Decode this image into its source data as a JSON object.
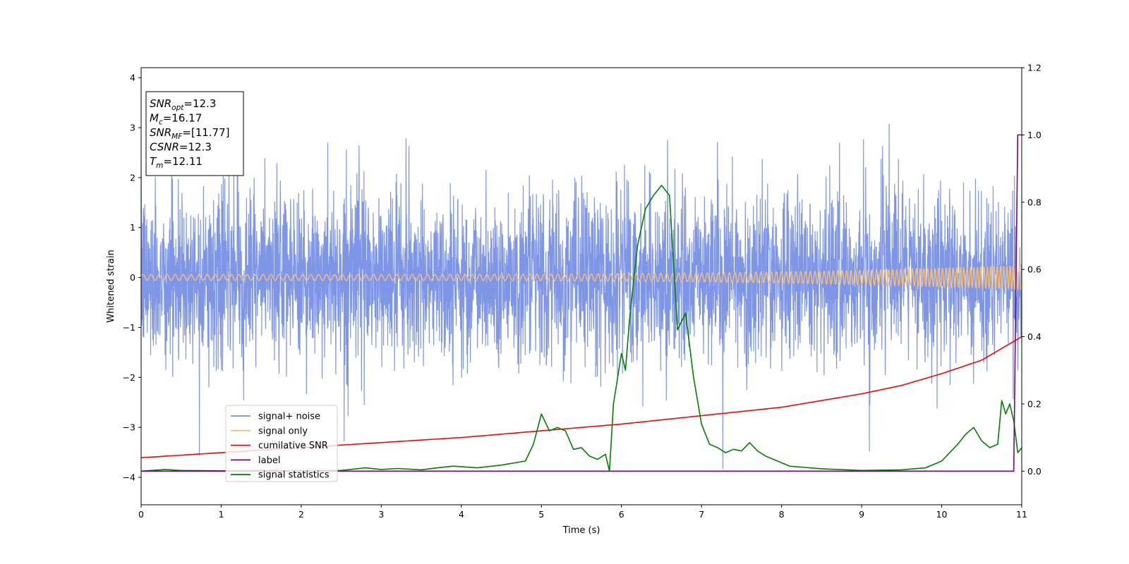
{
  "chart_data": {
    "type": "line",
    "xlabel": "Time (s)",
    "ylabel": "Whitened strain",
    "xlim": [
      0,
      11
    ],
    "ylim_left": [
      -4.55,
      4.2
    ],
    "ylim_right": [
      -0.1,
      1.2
    ],
    "x_ticks": [
      "0",
      "1",
      "2",
      "3",
      "4",
      "5",
      "6",
      "7",
      "8",
      "9",
      "10",
      "11"
    ],
    "y_ticks_left": [
      "−4",
      "−3",
      "−2",
      "−1",
      "0",
      "1",
      "2",
      "3",
      "4"
    ],
    "y_ticks_right": [
      "0.0",
      "0.2",
      "0.4",
      "0.6",
      "0.8",
      "1.0",
      "1.2"
    ],
    "legend_position": "lower-left",
    "info_box": [
      {
        "name": "SNR",
        "sub": "opt",
        "value": "=12.3"
      },
      {
        "name": "M",
        "sub": "c",
        "value": "=16.17"
      },
      {
        "name": "SNR",
        "sub": "MF",
        "value": "=[11.77]"
      },
      {
        "name": "CSNR",
        "sub": "",
        "value": "=12.3"
      },
      {
        "name": "T",
        "sub": "m",
        "value": "=12.11"
      }
    ],
    "series": [
      {
        "name": "signal+ noise",
        "axis": "left",
        "color": "#7890e6",
        "kind": "noise",
        "sigma": 0.85,
        "x_range": [
          0,
          11
        ]
      },
      {
        "name": "signal only",
        "axis": "left",
        "color": "#f5c07a",
        "kind": "chirp",
        "amplitude_start": 0.06,
        "amplitude_end": 0.25,
        "x_range": [
          0,
          11
        ]
      },
      {
        "name": "cumilative SNR",
        "axis": "right",
        "color": "#ff0000",
        "x": [
          0,
          1,
          2,
          3,
          4,
          5,
          6,
          7,
          8,
          9,
          9.5,
          10,
          10.5,
          11
        ],
        "y": [
          0.04,
          0.055,
          0.07,
          0.085,
          0.1,
          0.12,
          0.14,
          0.165,
          0.19,
          0.23,
          0.255,
          0.29,
          0.33,
          0.4
        ]
      },
      {
        "name": "label",
        "axis": "right",
        "color": "#800080",
        "x": [
          0,
          10.9,
          10.95,
          11
        ],
        "y": [
          0,
          0,
          1.0,
          1.0
        ]
      },
      {
        "name": "signal statistics",
        "axis": "right",
        "color": "#008000",
        "x": [
          0,
          0.3,
          0.5,
          1,
          1.5,
          2,
          2.5,
          2.8,
          3,
          3.2,
          3.5,
          3.7,
          3.9,
          4.2,
          4.5,
          4.8,
          4.9,
          5.0,
          5.1,
          5.2,
          5.3,
          5.4,
          5.5,
          5.6,
          5.7,
          5.8,
          5.85,
          5.9,
          6.0,
          6.05,
          6.1,
          6.2,
          6.3,
          6.4,
          6.5,
          6.6,
          6.7,
          6.8,
          6.9,
          7.0,
          7.1,
          7.2,
          7.3,
          7.4,
          7.5,
          7.6,
          7.7,
          7.8,
          7.9,
          8.1,
          8.5,
          9.0,
          9.5,
          9.8,
          10.0,
          10.1,
          10.2,
          10.3,
          10.4,
          10.5,
          10.6,
          10.7,
          10.75,
          10.8,
          10.85,
          10.9,
          10.95,
          11.0
        ],
        "y": [
          0.0,
          0.005,
          0.002,
          0.001,
          0.002,
          0.001,
          0.002,
          0.01,
          0.005,
          0.008,
          0.004,
          0.01,
          0.015,
          0.01,
          0.018,
          0.03,
          0.08,
          0.17,
          0.12,
          0.13,
          0.12,
          0.065,
          0.07,
          0.045,
          0.035,
          0.05,
          0.0,
          0.2,
          0.35,
          0.3,
          0.45,
          0.67,
          0.78,
          0.82,
          0.85,
          0.82,
          0.42,
          0.47,
          0.28,
          0.14,
          0.08,
          0.07,
          0.055,
          0.065,
          0.06,
          0.085,
          0.06,
          0.045,
          0.035,
          0.015,
          0.007,
          0.002,
          0.004,
          0.01,
          0.03,
          0.055,
          0.08,
          0.11,
          0.13,
          0.09,
          0.07,
          0.08,
          0.21,
          0.17,
          0.2,
          0.15,
          0.055,
          0.07
        ]
      }
    ]
  }
}
